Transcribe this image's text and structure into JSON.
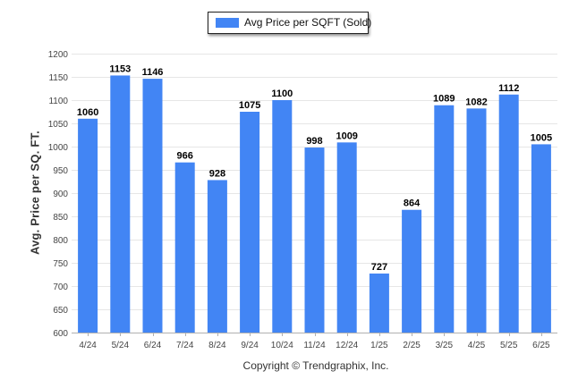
{
  "colors": {
    "bar": "#4285F4",
    "grid": "#e6e6e6",
    "axis": "#888888",
    "text": "#333333"
  },
  "legend": {
    "label": "Avg Price per SQFT (Sold)"
  },
  "copyright": "Copyright © Trendgraphix, Inc.",
  "chart_data": {
    "type": "bar",
    "categories": [
      "4/24",
      "5/24",
      "6/24",
      "7/24",
      "8/24",
      "9/24",
      "10/24",
      "11/24",
      "12/24",
      "1/25",
      "2/25",
      "3/25",
      "4/25",
      "5/25",
      "6/25"
    ],
    "series": [
      {
        "name": "Avg Price per SQFT (Sold)",
        "values": [
          1060,
          1153,
          1146,
          966,
          928,
          1075,
          1100,
          998,
          1009,
          727,
          864,
          1089,
          1082,
          1112,
          1005
        ]
      }
    ],
    "title": "",
    "xlabel": "",
    "ylabel": "Avg. Price per SQ. FT.",
    "ylim": [
      600,
      1200
    ],
    "yticks": [
      600,
      650,
      700,
      750,
      800,
      850,
      900,
      950,
      1000,
      1050,
      1100,
      1150,
      1200
    ],
    "grid": true,
    "legend_position": "top-center",
    "data_labels": true
  }
}
